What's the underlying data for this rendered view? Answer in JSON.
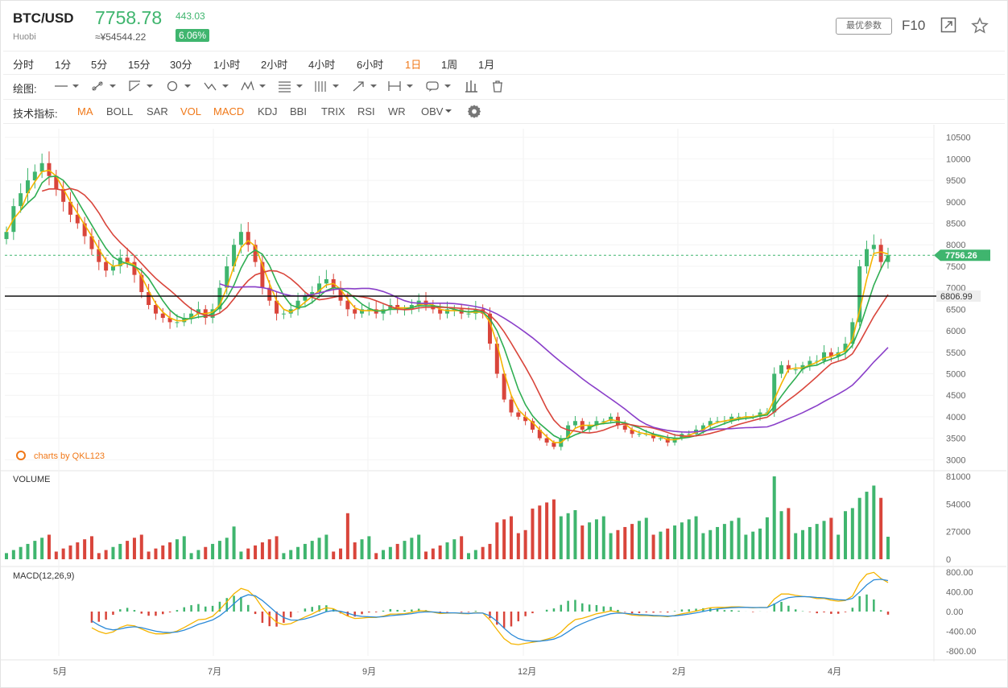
{
  "header": {
    "pair": "BTC/USD",
    "exchange": "Huobi",
    "price": "7758.78",
    "price_cny": "≈¥54544.22",
    "change": "443.03",
    "change_pct": "6.06%",
    "params_button": "最优参数",
    "f10": "F10",
    "colors": {
      "up": "#3fb56e",
      "accent": "#f07818"
    }
  },
  "timeframes": [
    "分时",
    "1分",
    "5分",
    "15分",
    "30分",
    "1小时",
    "2小时",
    "4小时",
    "6小时",
    "1日",
    "1周",
    "1月"
  ],
  "active_timeframe": "1日",
  "drawing": {
    "label": "绘图:",
    "tools": [
      "line-tool-icon",
      "ray-tool-icon",
      "channel-tool-icon",
      "circle-tool-icon",
      "wave-tool-icon",
      "pattern-tool-icon",
      "fib-tool-icon",
      "gann-tool-icon",
      "arrow-tool-icon",
      "measure-tool-icon",
      "text-tool-icon",
      "histogram-tool-icon",
      "trash-icon"
    ]
  },
  "indicators": {
    "label": "技术指标:",
    "items": [
      "MA",
      "BOLL",
      "SAR",
      "VOL",
      "MACD",
      "KDJ",
      "BBI",
      "TRIX",
      "RSI",
      "WR",
      "OBV"
    ],
    "active": [
      "MA",
      "VOL",
      "MACD"
    ]
  },
  "watermark": "charts by QKL123",
  "chart_data": [
    {
      "type": "candlestick",
      "name": "price",
      "y_ticks": [
        "10500",
        "10000",
        "9500",
        "9000",
        "8500",
        "8000",
        "7500",
        "7000",
        "6500",
        "6000",
        "5500",
        "5000",
        "4500",
        "4000",
        "3500",
        "3000"
      ],
      "ylim": [
        2800,
        10700
      ],
      "x_labels": [
        "5月",
        "7月",
        "9月",
        "12月",
        "2月",
        "4月"
      ],
      "current_price_label": "7756.26",
      "horizontal_line_label": "6806.99",
      "close_series": [
        8300,
        8900,
        9200,
        9500,
        9700,
        9900,
        9600,
        9300,
        9000,
        8700,
        8500,
        8200,
        7900,
        7600,
        7400,
        7500,
        7700,
        7600,
        7300,
        6900,
        6600,
        6400,
        6300,
        6200,
        6200,
        6300,
        6400,
        6500,
        6300,
        6500,
        7000,
        7500,
        8000,
        8300,
        8000,
        7600,
        7000,
        6700,
        6400,
        6400,
        6500,
        6700,
        6800,
        6900,
        7100,
        7200,
        7000,
        6700,
        6500,
        6400,
        6500,
        6500,
        6400,
        6500,
        6600,
        6500,
        6500,
        6600,
        6700,
        6600,
        6500,
        6400,
        6500,
        6500,
        6400,
        6400,
        6500,
        6400,
        5700,
        5000,
        4400,
        4100,
        4000,
        3900,
        3700,
        3500,
        3400,
        3300,
        3500,
        3800,
        3900,
        3700,
        3800,
        3900,
        3900,
        4000,
        3800,
        3700,
        3600,
        3600,
        3600,
        3500,
        3500,
        3400,
        3500,
        3600,
        3600,
        3700,
        3800,
        3900,
        3900,
        3900,
        4000,
        4000,
        4000,
        4000,
        4100,
        4100,
        5000,
        5200,
        5100,
        5100,
        5200,
        5300,
        5300,
        5500,
        5400,
        5500,
        5700,
        6200,
        7500,
        7900,
        8000,
        7600,
        7758
      ]
    },
    {
      "type": "bar",
      "name": "VOLUME",
      "y_ticks": [
        "81000",
        "54000",
        "27000",
        "0"
      ],
      "ylim": [
        0,
        81000
      ]
    },
    {
      "type": "line",
      "name": "MACD(12,26,9)",
      "y_ticks": [
        "800.00",
        "400.00",
        "0.00",
        "-400.00",
        "-800.00"
      ],
      "ylim": [
        -900,
        900
      ]
    }
  ]
}
